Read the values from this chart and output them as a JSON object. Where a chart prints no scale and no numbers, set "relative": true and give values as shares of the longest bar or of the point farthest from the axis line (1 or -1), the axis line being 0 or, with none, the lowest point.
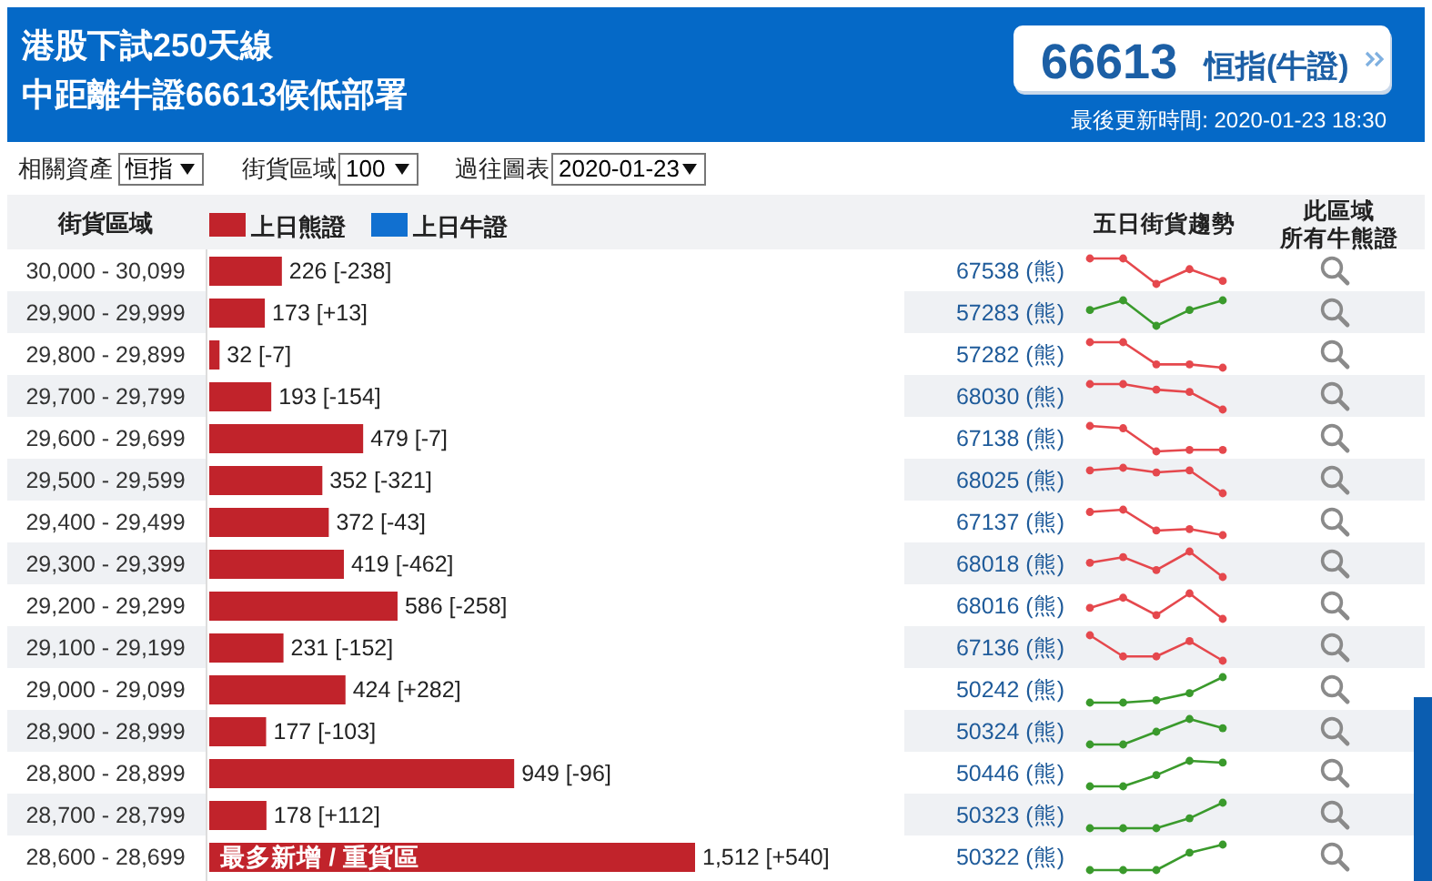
{
  "chart_data": [
    {
      "type": "bar",
      "orientation": "horizontal",
      "title": "港股下試250天線",
      "subtitle": "中距離牛證66613候低部署",
      "ylabel": "街貨區域",
      "legend": "top",
      "annotations": [
        "66613",
        "恒指(牛證)",
        "最後更新時間: 2020-01-23 18:30",
        "相關資產",
        "恒指",
        "街貨區域",
        "100",
        "過往圖表",
        "2020-01-23",
        {
          "text": "最多新增 / 重貨區",
          "y": "28,600 - 28,699"
        }
      ],
      "categories": [
        "30,000 - 30,099",
        "29,900 - 29,999",
        "29,800 - 29,899",
        "29,700 - 29,799",
        "29,600 - 29,699",
        "29,500 - 29,599",
        "29,400 - 29,499",
        "29,300 - 29,399",
        "29,200 - 29,299",
        "29,100 - 29,199",
        "29,000 - 29,099",
        "28,900 - 28,999",
        "28,800 - 28,899",
        "28,700 - 28,799",
        "28,600 - 28,699"
      ],
      "series": [
        {
          "name": "上日熊證",
          "color": "#c1232b",
          "values": [
            226,
            173,
            32,
            193,
            479,
            352,
            372,
            419,
            586,
            231,
            424,
            177,
            949,
            178,
            1512
          ],
          "value_labels": [
            "226 [-238]",
            "173 [+13]",
            "32 [-7]",
            "193 [-154]",
            "479 [-7]",
            "352 [-321]",
            "372 [-43]",
            "419 [-462]",
            "586 [-258]",
            "231 [-152]",
            "424 [+282]",
            "177 [-103]",
            "949 [-96]",
            "178 [+112]",
            "1,512 [+540]"
          ]
        },
        {
          "name": "上日牛證",
          "color": "#1170d0",
          "values": [
            null,
            null,
            null,
            null,
            null,
            null,
            null,
            null,
            null,
            null,
            null,
            null,
            null,
            null,
            null
          ]
        }
      ]
    },
    {
      "type": "other",
      "annotations": [
        "67538 (熊)",
        "57283 (熊)",
        "57282 (熊)",
        "68030 (熊)",
        "67138 (熊)",
        "68025 (熊)",
        "67137 (熊)",
        "68018 (熊)",
        "68016 (熊)",
        "67136 (熊)",
        "50242 (熊)",
        "50324 (熊)",
        "50446 (熊)",
        "50323 (熊)",
        "50322 (熊)"
      ]
    },
    {
      "type": "line",
      "relative": true,
      "title": "五日街貨趨勢",
      "categories": [
        null,
        null,
        null,
        null,
        null
      ],
      "values": [
        1,
        1,
        0,
        0.58,
        0.12
      ],
      "color": "#e5484d",
      "marker": "circle"
    },
    {
      "type": "line",
      "relative": true,
      "categories": [
        null,
        null,
        null,
        null,
        null
      ],
      "values": [
        0.62,
        1,
        0,
        0.62,
        1
      ],
      "color": "#3a9a2c",
      "marker": "circle"
    },
    {
      "type": "line",
      "relative": true,
      "categories": [
        null,
        null,
        null,
        null,
        null
      ],
      "values": [
        1,
        1,
        0.13,
        0.13,
        0
      ],
      "color": "#e5484d",
      "marker": "circle"
    },
    {
      "type": "line",
      "relative": true,
      "categories": [
        null,
        null,
        null,
        null,
        null
      ],
      "values": [
        1,
        1,
        0.78,
        0.69,
        0
      ],
      "color": "#e5484d",
      "marker": "circle"
    },
    {
      "type": "line",
      "relative": true,
      "categories": [
        null,
        null,
        null,
        null,
        null
      ],
      "values": [
        1,
        0.91,
        0,
        0.06,
        0.06
      ],
      "color": "#e5484d",
      "marker": "circle"
    },
    {
      "type": "line",
      "relative": true,
      "categories": [
        null,
        null,
        null,
        null,
        null
      ],
      "values": [
        0.9,
        1,
        0.82,
        0.9,
        0
      ],
      "color": "#e5484d",
      "marker": "circle"
    },
    {
      "type": "line",
      "relative": true,
      "categories": [
        null,
        null,
        null,
        null,
        null
      ],
      "values": [
        0.91,
        1,
        0.18,
        0.24,
        0
      ],
      "color": "#e5484d",
      "marker": "circle"
    },
    {
      "type": "line",
      "relative": true,
      "categories": [
        null,
        null,
        null,
        null,
        null
      ],
      "values": [
        0.56,
        0.78,
        0.27,
        1,
        0
      ],
      "color": "#e5484d",
      "marker": "circle"
    },
    {
      "type": "line",
      "relative": true,
      "categories": [
        null,
        null,
        null,
        null,
        null
      ],
      "values": [
        0.43,
        0.83,
        0.15,
        1,
        0
      ],
      "color": "#e5484d",
      "marker": "circle"
    },
    {
      "type": "line",
      "relative": true,
      "categories": [
        null,
        null,
        null,
        null,
        null
      ],
      "values": [
        1,
        0.17,
        0.17,
        0.77,
        0
      ],
      "color": "#e5484d",
      "marker": "circle"
    },
    {
      "type": "line",
      "relative": true,
      "categories": [
        null,
        null,
        null,
        null,
        null
      ],
      "values": [
        0,
        0,
        0.09,
        0.37,
        1
      ],
      "color": "#3a9a2c",
      "marker": "circle"
    },
    {
      "type": "line",
      "relative": true,
      "categories": [
        null,
        null,
        null,
        null,
        null
      ],
      "values": [
        0,
        0,
        0.5,
        1,
        0.64
      ],
      "color": "#3a9a2c",
      "marker": "circle"
    },
    {
      "type": "line",
      "relative": true,
      "categories": [
        null,
        null,
        null,
        null,
        null
      ],
      "values": [
        0,
        0,
        0.44,
        1,
        0.93
      ],
      "color": "#3a9a2c",
      "marker": "circle"
    },
    {
      "type": "line",
      "relative": true,
      "categories": [
        null,
        null,
        null,
        null,
        null
      ],
      "values": [
        0,
        0,
        0,
        0.39,
        1
      ],
      "color": "#3a9a2c",
      "marker": "circle"
    },
    {
      "type": "line",
      "relative": true,
      "categories": [
        null,
        null,
        null,
        null,
        null
      ],
      "values": [
        0,
        0,
        0,
        0.68,
        1
      ],
      "color": "#3a9a2c",
      "marker": "circle"
    },
    {
      "type": "other",
      "annotations": [
        "此區域",
        "所有牛熊證"
      ]
    }
  ]
}
